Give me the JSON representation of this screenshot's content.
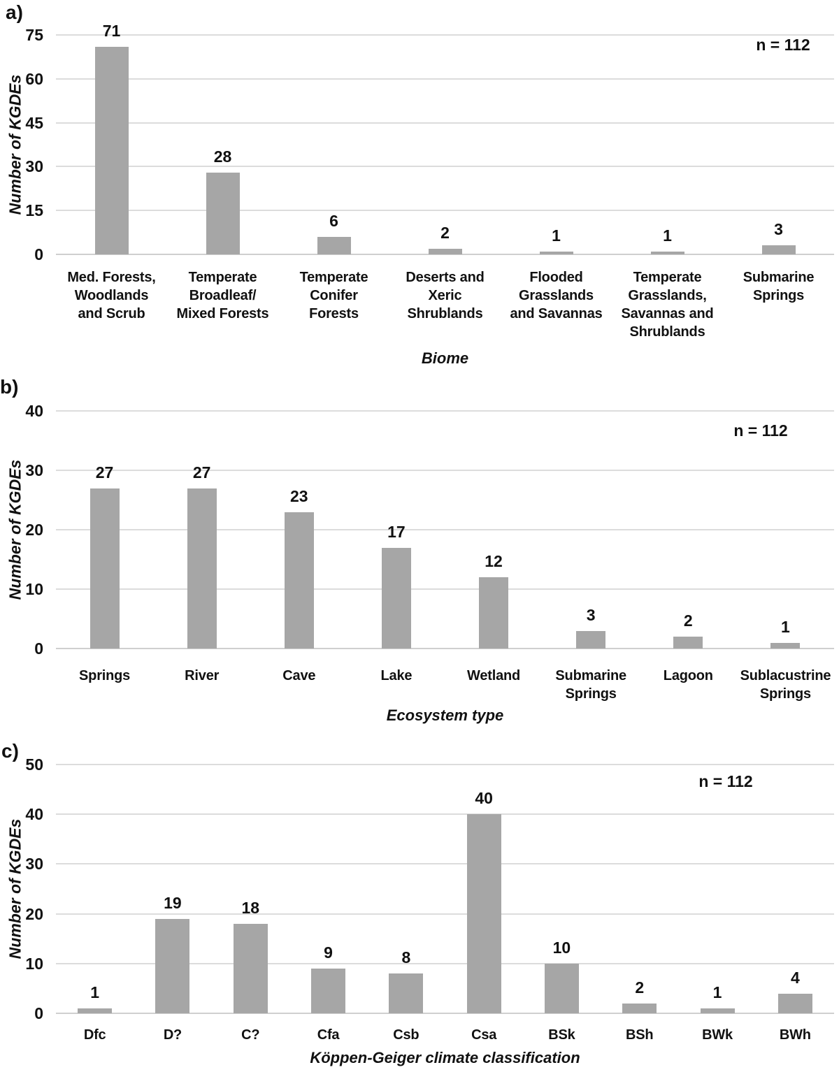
{
  "colors": {
    "background": "#ffffff",
    "bar": "#a6a6a6",
    "gridline": "#dcdcdc",
    "axis_line": "#cfcfcf",
    "text": "#111111"
  },
  "chart_data": [
    {
      "panel_label": "a)",
      "type": "bar",
      "title": "",
      "annotation": "n = 112",
      "xlabel": "Biome",
      "ylabel": "Number of KGDEs",
      "ylim": [
        0,
        75
      ],
      "yticks": [
        0,
        15,
        30,
        45,
        60,
        75
      ],
      "grid": "horizontal",
      "legend": "none",
      "categories": [
        "Med. Forests, Woodlands and Scrub",
        "Temperate Broadleaf/ Mixed Forests",
        "Temperate Conifer Forests",
        "Deserts and Xeric Shrublands",
        "Flooded Grasslands and Savannas",
        "Temperate Grasslands, Savannas and Shrublands",
        "Submarine Springs"
      ],
      "category_lines": [
        [
          "Med. Forests,",
          "Woodlands",
          "and Scrub"
        ],
        [
          "Temperate",
          "Broadleaf/",
          "Mixed Forests"
        ],
        [
          "Temperate",
          "Conifer",
          "Forests"
        ],
        [
          "Deserts and",
          "Xeric",
          "Shrublands"
        ],
        [
          "Flooded",
          "Grasslands",
          "and Savannas"
        ],
        [
          "Temperate",
          "Grasslands,",
          "Savannas and",
          "Shrublands"
        ],
        [
          "Submarine",
          "Springs"
        ]
      ],
      "values": [
        71,
        28,
        6,
        2,
        1,
        1,
        3
      ]
    },
    {
      "panel_label": "b)",
      "type": "bar",
      "title": "",
      "annotation": "n = 112",
      "xlabel": "Ecosystem type",
      "ylabel": "Number of KGDEs",
      "ylim": [
        0,
        40
      ],
      "yticks": [
        0,
        10,
        20,
        30,
        40
      ],
      "grid": "horizontal",
      "legend": "none",
      "categories": [
        "Springs",
        "River",
        "Cave",
        "Lake",
        "Wetland",
        "Submarine Springs",
        "Lagoon",
        "Sublacustrine Springs"
      ],
      "category_lines": [
        [
          "Springs"
        ],
        [
          "River"
        ],
        [
          "Cave"
        ],
        [
          "Lake"
        ],
        [
          "Wetland"
        ],
        [
          "Submarine",
          "Springs"
        ],
        [
          "Lagoon"
        ],
        [
          "Sublacustrine",
          "Springs"
        ]
      ],
      "values": [
        27,
        27,
        23,
        17,
        12,
        3,
        2,
        1
      ]
    },
    {
      "panel_label": "c)",
      "type": "bar",
      "title": "",
      "annotation": "n = 112",
      "xlabel": "Köppen-Geiger climate classification",
      "ylabel": "Number of KGDEs",
      "ylim": [
        0,
        50
      ],
      "yticks": [
        0,
        10,
        20,
        30,
        40,
        50
      ],
      "grid": "horizontal",
      "legend": "none",
      "categories": [
        "Dfc",
        "D?",
        "C?",
        "Cfa",
        "Csb",
        "Csa",
        "BSk",
        "BSh",
        "BWk",
        "BWh"
      ],
      "category_lines": [
        [
          "Dfc"
        ],
        [
          "D?"
        ],
        [
          "C?"
        ],
        [
          "Cfa"
        ],
        [
          "Csb"
        ],
        [
          "Csa"
        ],
        [
          "BSk"
        ],
        [
          "BSh"
        ],
        [
          "BWk"
        ],
        [
          "BWh"
        ]
      ],
      "values": [
        1,
        19,
        18,
        9,
        8,
        40,
        10,
        2,
        1,
        4
      ]
    }
  ]
}
